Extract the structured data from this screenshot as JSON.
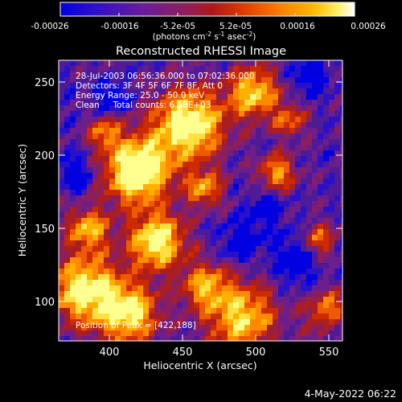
{
  "colorbar": {
    "tick_labels": [
      "-0.00026",
      "-0.00016",
      "-5.2e-05",
      "5.2e-05",
      "0.00016",
      "0.00026"
    ],
    "unit_label": "(photons cm",
    "unit_exp1": "-2",
    "unit_mid": " s",
    "unit_exp2": "-1",
    "unit_tail": " asec",
    "unit_exp3": "-2",
    "unit_close": ")",
    "colors": [
      "#0000e0",
      "#4a10c0",
      "#7a208c",
      "#9a2050",
      "#bb1a10",
      "#e85000",
      "#ff8800",
      "#ffc000",
      "#ffff70",
      "#ffffff"
    ]
  },
  "title": "Reconstructed RHESSI Image",
  "info": {
    "line1": "28-Jul-2003 06:56:36.000 to 07:02:36.000",
    "line2": "Detectors: 3F 4F 5F 6F 7F 8F, Att 0",
    "line3": "Energy Range: 25.0 - 50.0 keV",
    "line4": "Clean     Total counts: 6.58E+03",
    "peak": "Position of Peak = [422,188]"
  },
  "axes": {
    "xlabel": "Heliocentric X (arcsec)",
    "ylabel": "Heliocentric Y (arcsec)",
    "x_ticks": [
      "400",
      "450",
      "500",
      "550"
    ],
    "y_ticks": [
      "100",
      "150",
      "200",
      "250"
    ]
  },
  "timestamp": "4-May-2022 06:22"
}
